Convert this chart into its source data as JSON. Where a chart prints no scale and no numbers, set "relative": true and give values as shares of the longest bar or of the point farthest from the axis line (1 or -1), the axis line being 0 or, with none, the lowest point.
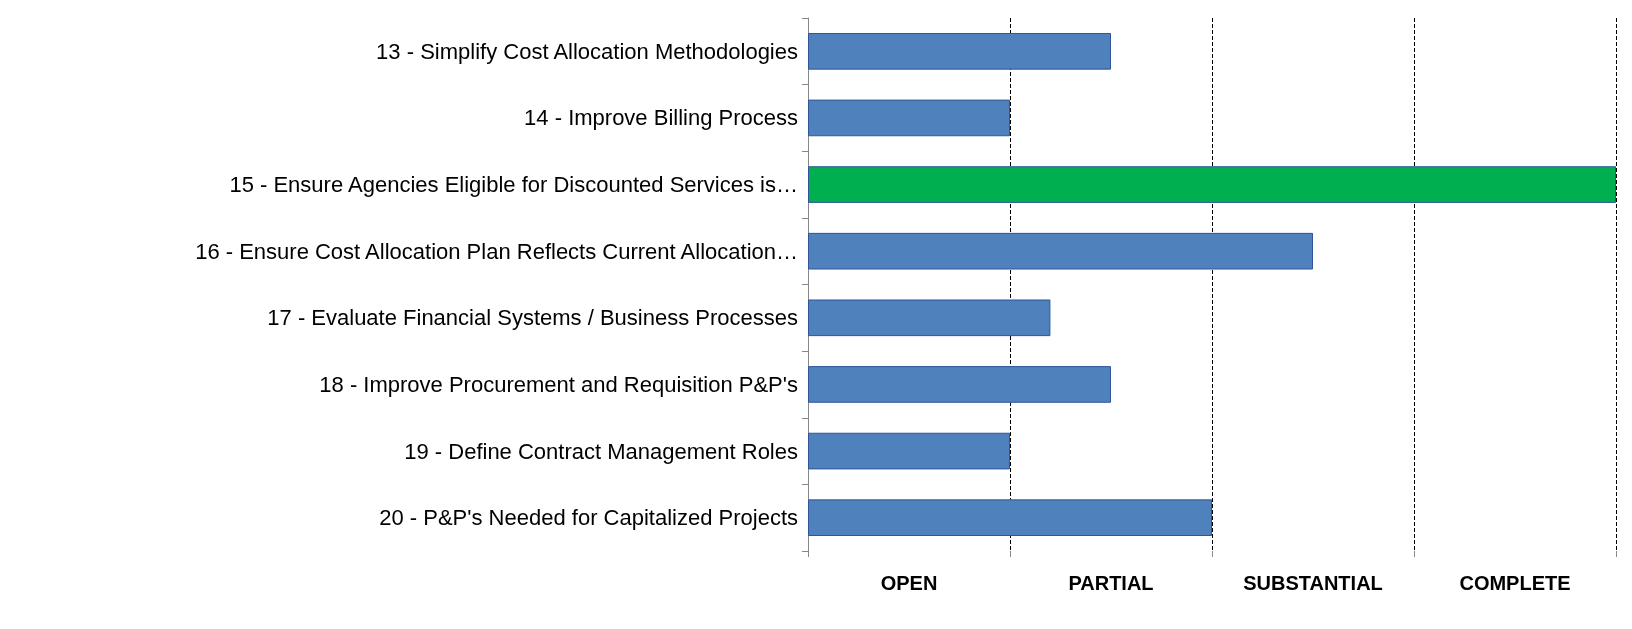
{
  "chart_data": {
    "type": "bar",
    "orientation": "horizontal",
    "relative": true,
    "categories": [
      "13 - Simplify Cost Allocation Methodologies",
      "14 - Improve Billing Process",
      "15 - Ensure Agencies Eligible for Discounted Services is…",
      "16 - Ensure Cost Allocation Plan Reflects Current Allocation…",
      "17 - Evaluate Financial Systems / Business Processes",
      "18 - Improve Procurement and Requisition P&P's",
      "19 - Define Contract Management Roles",
      "20 - P&P's Needed for Capitalized Projects"
    ],
    "values": [
      0.375,
      0.25,
      1,
      0.625,
      0.3,
      0.375,
      0.25,
      0.5
    ],
    "colors": [
      "#4f81bd",
      "#4f81bd",
      "#00b050",
      "#4f81bd",
      "#4f81bd",
      "#4f81bd",
      "#4f81bd",
      "#4f81bd"
    ],
    "annotations": [
      "OPEN",
      "PARTIAL",
      "SUBSTANTIAL",
      "COMPLETE"
    ],
    "grid": "x",
    "line_style": "dashed"
  }
}
